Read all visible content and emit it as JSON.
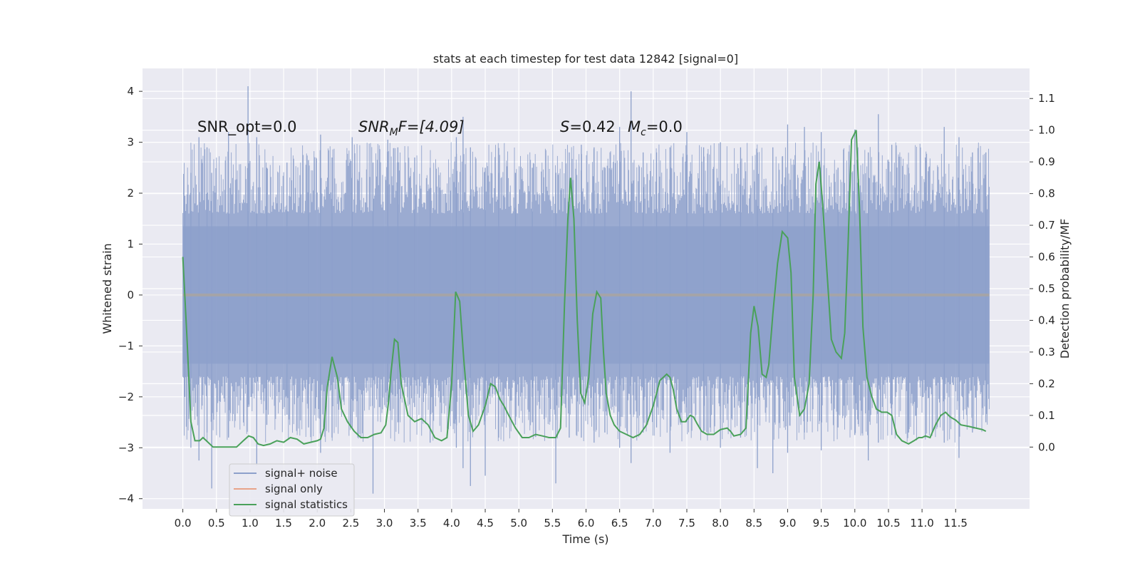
{
  "chart_data": {
    "type": "line",
    "title": "stats at each timestep for test data 12842 [signal=0]",
    "xlabel": "Time (s)",
    "ylabel": "Whitened strain",
    "ylabel_right": "Detection probability/MF",
    "xlim": [
      -0.6,
      12.6
    ],
    "ylim": [
      -4.2,
      4.45
    ],
    "ylim_right": [
      -0.195,
      1.195
    ],
    "x_ticks": [
      0.0,
      0.5,
      1.0,
      1.5,
      2.0,
      2.5,
      3.0,
      3.5,
      4.0,
      4.5,
      5.0,
      5.5,
      6.0,
      6.5,
      7.0,
      7.5,
      8.0,
      8.5,
      9.0,
      9.5,
      10.0,
      10.5,
      11.0,
      11.5
    ],
    "x_tick_labels": [
      "0.0",
      "0.5",
      "1.0",
      "1.5",
      "2.0",
      "2.5",
      "3.0",
      "3.5",
      "4.0",
      "4.5",
      "5.0",
      "5.5",
      "6.0",
      "6.5",
      "7.0",
      "7.5",
      "8.0",
      "8.5",
      "9.0",
      "9.5",
      "10.0",
      "10.5",
      "11.0",
      "11.5"
    ],
    "y_ticks": [
      4,
      3,
      2,
      1,
      0,
      -1,
      -2,
      -3,
      -4
    ],
    "y_tick_labels": [
      "4",
      "3",
      "2",
      "1",
      "0",
      "−1",
      "−2",
      "−3",
      "−4"
    ],
    "y2_ticks": [
      1.1,
      1.0,
      0.9,
      0.8,
      0.7,
      0.6,
      0.5,
      0.4,
      0.3,
      0.2,
      0.1,
      0.0
    ],
    "y2_tick_labels": [
      "1.1",
      "1.0",
      "0.9",
      "0.8",
      "0.7",
      "0.6",
      "0.5",
      "0.4",
      "0.3",
      "0.2",
      "0.1",
      "0.0"
    ],
    "annotations": {
      "snr_opt": "SNR_opt=0.0",
      "snr_mf_main": "SNR",
      "snr_mf_sub": "M",
      "snr_mf_tail": "F=[4.09]",
      "s_main": "S",
      "s_tail": "=0.42",
      "mc_main": "M",
      "mc_sub": "c",
      "mc_tail": "=0.0"
    },
    "legend": [
      {
        "label": "signal+ noise",
        "color": "#8da0cb"
      },
      {
        "label": "signal only",
        "color": "#e8a389"
      },
      {
        "label": "signal statistics",
        "color": "#4aa15a"
      }
    ],
    "legend_position": "lower-left",
    "series": [
      {
        "name": "signal+ noise",
        "color": "#8da0cb",
        "axis": "left",
        "x_range": [
          0.0,
          12.0
        ],
        "band": [
          -1.35,
          1.35
        ],
        "spikes": [
          {
            "x": 0.03,
            "top": 1.95,
            "bottom": -2.0
          },
          {
            "x": 0.12,
            "top": 2.4,
            "bottom": -3.0
          },
          {
            "x": 0.24,
            "top": 3.1,
            "bottom": -3.25
          },
          {
            "x": 0.36,
            "top": 2.9,
            "bottom": -2.7
          },
          {
            "x": 0.43,
            "top": 2.4,
            "bottom": -3.8
          },
          {
            "x": 0.68,
            "top": 3.2,
            "bottom": -2.8
          },
          {
            "x": 0.97,
            "top": 4.1,
            "bottom": -2.2
          },
          {
            "x": 1.1,
            "top": 3.1,
            "bottom": -3.35
          },
          {
            "x": 1.25,
            "top": 2.5,
            "bottom": -2.55
          },
          {
            "x": 1.55,
            "top": 2.6,
            "bottom": -2.35
          },
          {
            "x": 1.87,
            "top": 2.65,
            "bottom": -2.6
          },
          {
            "x": 2.05,
            "top": 3.15,
            "bottom": -3.1
          },
          {
            "x": 2.22,
            "top": 2.7,
            "bottom": -2.8
          },
          {
            "x": 2.52,
            "top": 3.1,
            "bottom": -2.6
          },
          {
            "x": 2.83,
            "top": 2.6,
            "bottom": -3.9
          },
          {
            "x": 3.05,
            "top": 3.05,
            "bottom": -2.1
          },
          {
            "x": 3.2,
            "top": 2.9,
            "bottom": -2.5
          },
          {
            "x": 3.45,
            "top": 2.7,
            "bottom": -2.2
          },
          {
            "x": 3.68,
            "top": 2.5,
            "bottom": -2.9
          },
          {
            "x": 4.07,
            "top": 3.1,
            "bottom": -3.0
          },
          {
            "x": 4.17,
            "top": 3.5,
            "bottom": -3.4
          },
          {
            "x": 4.28,
            "top": 2.9,
            "bottom": -3.75
          },
          {
            "x": 4.5,
            "top": 2.5,
            "bottom": -3.55
          },
          {
            "x": 4.7,
            "top": 2.4,
            "bottom": -2.8
          },
          {
            "x": 4.95,
            "top": 2.4,
            "bottom": -2.55
          },
          {
            "x": 5.2,
            "top": 2.5,
            "bottom": -2.5
          },
          {
            "x": 5.55,
            "top": 2.4,
            "bottom": -3.7
          },
          {
            "x": 5.75,
            "top": 2.8,
            "bottom": -2.8
          },
          {
            "x": 5.93,
            "top": 2.95,
            "bottom": -2.8
          },
          {
            "x": 6.12,
            "top": 2.9,
            "bottom": -2.9
          },
          {
            "x": 6.28,
            "top": 2.5,
            "bottom": -2.7
          },
          {
            "x": 6.5,
            "top": 3.3,
            "bottom": -3.0
          },
          {
            "x": 6.67,
            "top": 4.0,
            "bottom": -3.3
          },
          {
            "x": 6.85,
            "top": 2.8,
            "bottom": -2.7
          },
          {
            "x": 7.05,
            "top": 2.8,
            "bottom": -2.6
          },
          {
            "x": 7.25,
            "top": 2.9,
            "bottom": -3.1
          },
          {
            "x": 7.5,
            "top": 3.2,
            "bottom": -2.5
          },
          {
            "x": 7.75,
            "top": 2.9,
            "bottom": -2.7
          },
          {
            "x": 8.0,
            "top": 3.0,
            "bottom": -3.0
          },
          {
            "x": 8.3,
            "top": 2.9,
            "bottom": -2.8
          },
          {
            "x": 8.55,
            "top": 2.8,
            "bottom": -3.4
          },
          {
            "x": 8.78,
            "top": 2.9,
            "bottom": -3.5
          },
          {
            "x": 9.0,
            "top": 3.35,
            "bottom": -3.1
          },
          {
            "x": 9.25,
            "top": 3.3,
            "bottom": -2.7
          },
          {
            "x": 9.5,
            "top": 3.2,
            "bottom": -3.05
          },
          {
            "x": 9.75,
            "top": 2.5,
            "bottom": -2.6
          },
          {
            "x": 10.0,
            "top": 3.25,
            "bottom": -2.75
          },
          {
            "x": 10.2,
            "top": 2.8,
            "bottom": -3.25
          },
          {
            "x": 10.35,
            "top": 3.55,
            "bottom": -2.9
          },
          {
            "x": 10.55,
            "top": 2.95,
            "bottom": -2.75
          },
          {
            "x": 10.8,
            "top": 2.5,
            "bottom": -2.7
          },
          {
            "x": 11.05,
            "top": 2.7,
            "bottom": -2.8
          },
          {
            "x": 11.33,
            "top": 3.3,
            "bottom": -2.9
          },
          {
            "x": 11.55,
            "top": 3.1,
            "bottom": -3.2
          },
          {
            "x": 11.75,
            "top": 2.8,
            "bottom": -2.7
          },
          {
            "x": 11.95,
            "top": 2.8,
            "bottom": -2.5
          }
        ]
      },
      {
        "name": "signal only",
        "color": "#e8a389",
        "axis": "left",
        "x": [
          0.0,
          12.0
        ],
        "y": [
          0.0,
          0.0
        ]
      },
      {
        "name": "signal statistics",
        "color": "#4aa15a",
        "axis": "right",
        "x": [
          0.0,
          0.06,
          0.12,
          0.18,
          0.25,
          0.3,
          0.35,
          0.45,
          0.55,
          0.7,
          0.8,
          0.9,
          0.98,
          1.05,
          1.12,
          1.2,
          1.3,
          1.4,
          1.5,
          1.6,
          1.7,
          1.8,
          1.9,
          2.0,
          2.05,
          2.1,
          2.15,
          2.22,
          2.3,
          2.36,
          2.45,
          2.55,
          2.65,
          2.75,
          2.85,
          2.95,
          3.02,
          3.06,
          3.1,
          3.15,
          3.2,
          3.25,
          3.35,
          3.45,
          3.55,
          3.65,
          3.75,
          3.85,
          3.93,
          4.0,
          4.06,
          4.12,
          4.18,
          4.25,
          4.32,
          4.4,
          4.5,
          4.58,
          4.65,
          4.72,
          4.78,
          4.85,
          4.95,
          5.05,
          5.15,
          5.25,
          5.35,
          5.45,
          5.55,
          5.62,
          5.68,
          5.73,
          5.77,
          5.82,
          5.87,
          5.92,
          5.98,
          6.04,
          6.1,
          6.16,
          6.22,
          6.26,
          6.3,
          6.36,
          6.42,
          6.5,
          6.6,
          6.7,
          6.8,
          6.9,
          7.0,
          7.1,
          7.2,
          7.25,
          7.3,
          7.35,
          7.42,
          7.48,
          7.55,
          7.6,
          7.65,
          7.72,
          7.8,
          7.9,
          8.0,
          8.1,
          8.15,
          8.2,
          8.3,
          8.38,
          8.45,
          8.5,
          8.56,
          8.62,
          8.68,
          8.72,
          8.78,
          8.85,
          8.92,
          9.0,
          9.05,
          9.1,
          9.18,
          9.25,
          9.32,
          9.38,
          9.42,
          9.47,
          9.52,
          9.58,
          9.65,
          9.72,
          9.8,
          9.85,
          9.9,
          9.95,
          10.02,
          10.07,
          10.12,
          10.18,
          10.25,
          10.32,
          10.4,
          10.48,
          10.55,
          10.62,
          10.7,
          10.8,
          10.88,
          10.95,
          11.0,
          11.05,
          11.12,
          11.2,
          11.28,
          11.35,
          11.42,
          11.5,
          11.58,
          11.7,
          11.8,
          11.9,
          11.95
        ],
        "y": [
          0.6,
          0.35,
          0.08,
          0.02,
          0.02,
          0.03,
          0.02,
          0.0,
          0.0,
          0.0,
          0.0,
          0.02,
          0.035,
          0.03,
          0.01,
          0.005,
          0.01,
          0.02,
          0.015,
          0.03,
          0.025,
          0.01,
          0.015,
          0.02,
          0.025,
          0.06,
          0.19,
          0.285,
          0.22,
          0.12,
          0.08,
          0.05,
          0.03,
          0.03,
          0.04,
          0.045,
          0.07,
          0.14,
          0.24,
          0.34,
          0.33,
          0.2,
          0.1,
          0.08,
          0.09,
          0.07,
          0.03,
          0.02,
          0.03,
          0.2,
          0.49,
          0.46,
          0.28,
          0.1,
          0.05,
          0.07,
          0.13,
          0.2,
          0.19,
          0.15,
          0.13,
          0.1,
          0.06,
          0.03,
          0.03,
          0.04,
          0.035,
          0.03,
          0.03,
          0.06,
          0.45,
          0.72,
          0.85,
          0.72,
          0.4,
          0.17,
          0.14,
          0.22,
          0.42,
          0.49,
          0.47,
          0.3,
          0.17,
          0.1,
          0.07,
          0.05,
          0.04,
          0.03,
          0.04,
          0.07,
          0.13,
          0.21,
          0.23,
          0.22,
          0.18,
          0.12,
          0.08,
          0.08,
          0.1,
          0.095,
          0.075,
          0.05,
          0.04,
          0.04,
          0.055,
          0.06,
          0.05,
          0.035,
          0.04,
          0.06,
          0.36,
          0.445,
          0.38,
          0.23,
          0.22,
          0.26,
          0.42,
          0.58,
          0.68,
          0.66,
          0.55,
          0.22,
          0.1,
          0.12,
          0.2,
          0.48,
          0.83,
          0.9,
          0.77,
          0.57,
          0.34,
          0.3,
          0.28,
          0.36,
          0.64,
          0.97,
          1.0,
          0.75,
          0.38,
          0.22,
          0.16,
          0.12,
          0.11,
          0.11,
          0.1,
          0.04,
          0.02,
          0.01,
          0.02,
          0.03,
          0.03,
          0.035,
          0.03,
          0.07,
          0.1,
          0.11,
          0.095,
          0.085,
          0.07,
          0.065,
          0.06,
          0.055,
          0.05
        ]
      }
    ]
  }
}
